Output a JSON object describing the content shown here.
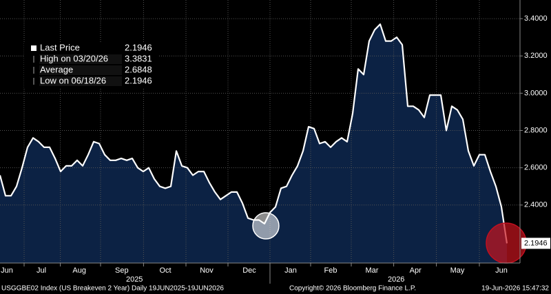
{
  "chart_data": {
    "type": "area",
    "values": [
      2.56,
      2.45,
      2.45,
      2.5,
      2.6,
      2.71,
      2.76,
      2.74,
      2.71,
      2.71,
      2.65,
      2.58,
      2.61,
      2.61,
      2.64,
      2.61,
      2.67,
      2.74,
      2.73,
      2.67,
      2.64,
      2.64,
      2.65,
      2.64,
      2.65,
      2.6,
      2.58,
      2.6,
      2.54,
      2.5,
      2.49,
      2.5,
      2.69,
      2.61,
      2.6,
      2.56,
      2.58,
      2.58,
      2.52,
      2.47,
      2.43,
      2.45,
      2.47,
      2.47,
      2.41,
      2.33,
      2.32,
      2.32,
      2.3,
      2.36,
      2.39,
      2.49,
      2.5,
      2.56,
      2.61,
      2.69,
      2.82,
      2.81,
      2.73,
      2.74,
      2.71,
      2.74,
      2.76,
      2.74,
      2.89,
      3.13,
      3.1,
      3.28,
      3.34,
      3.37,
      3.28,
      3.28,
      3.3,
      3.26,
      2.93,
      2.93,
      2.91,
      2.87,
      2.99,
      2.99,
      2.99,
      2.8,
      2.93,
      2.91,
      2.86,
      2.69,
      2.61,
      2.67,
      2.67,
      2.58,
      2.5,
      2.39,
      2.1946
    ],
    "color": "#ffffff",
    "fill": "#0c2244",
    "xlim": [
      0,
      92
    ],
    "xticks": [
      {
        "value": 1.25,
        "label": "Jun"
      },
      {
        "value": 7.5,
        "label": "Jul"
      },
      {
        "value": 14.4,
        "label": "Aug"
      },
      {
        "value": 22.1,
        "label": "Sep"
      },
      {
        "value": 30,
        "label": "Oct"
      },
      {
        "value": 37.5,
        "label": "Nov"
      },
      {
        "value": 45.25,
        "label": "Dec"
      },
      {
        "value": 52.75,
        "label": "Jan"
      },
      {
        "value": 60,
        "label": "Feb"
      },
      {
        "value": 67.5,
        "label": "Mar"
      },
      {
        "value": 75.4,
        "label": "Apr"
      },
      {
        "value": 83,
        "label": "May"
      },
      {
        "value": 91,
        "label": "Jun"
      }
    ],
    "year_labels": [
      {
        "value": 24.4,
        "label": "2025"
      },
      {
        "value": 71.9,
        "label": "2026"
      }
    ],
    "ylim": [
      2.089,
      3.5
    ],
    "yticks": [
      {
        "value": 2.4,
        "label": "2.4000"
      },
      {
        "value": 2.6,
        "label": "2.6000"
      },
      {
        "value": 2.8,
        "label": "2.8000"
      },
      {
        "value": 3.0,
        "label": "3.0000"
      },
      {
        "value": 3.2,
        "label": "3.2000"
      },
      {
        "value": 3.4,
        "label": "3.4000"
      }
    ],
    "grid": true,
    "legend": [
      {
        "label": "Last Price",
        "value": 2.1946
      },
      {
        "label": "High on 03/20/26",
        "value": 3.3831
      },
      {
        "label": "Average",
        "value": 2.6848
      },
      {
        "label": "Low on 06/18/26",
        "value": 2.1946
      }
    ],
    "footer": {
      "left": "USGGBE02 Index (US Breakeven 2 Year) Daily 19JUN2025-19JUN2026",
      "center": "Copyright© 2026 Bloomberg Finance L.P.",
      "right": "19-Jun-2026 15:47:32"
    }
  }
}
